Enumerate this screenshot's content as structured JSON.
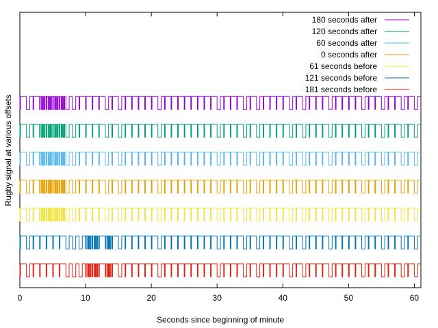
{
  "chart_data": {
    "type": "line",
    "title": "",
    "xlabel": "Seconds since beginning of minute",
    "ylabel": "Rugby signal at various offsets",
    "xlim": [
      0,
      61
    ],
    "xticks": [
      0,
      10,
      20,
      30,
      40,
      50,
      60
    ],
    "grid": false,
    "legend_position": "top-right",
    "series": [
      {
        "name": "180 seconds after",
        "color": "#9400d3",
        "dense_pulse_seconds": [
          3,
          4,
          5,
          6
        ],
        "long_gap_seconds": [
          1,
          7,
          8,
          13,
          15,
          21,
          30,
          34,
          36,
          41,
          43,
          47,
          52,
          55,
          58,
          60
        ]
      },
      {
        "name": "120 seconds after",
        "color": "#009e73",
        "dense_pulse_seconds": [
          3,
          4,
          5,
          6
        ],
        "long_gap_seconds": [
          1,
          7,
          8,
          13,
          15,
          21,
          30,
          34,
          36,
          41,
          43,
          47,
          52,
          55,
          58,
          60
        ]
      },
      {
        "name": "60 seconds after",
        "color": "#56b4e9",
        "dense_pulse_seconds": [
          3,
          4,
          5,
          6
        ],
        "long_gap_seconds": [
          1,
          7,
          8,
          13,
          15,
          21,
          30,
          34,
          36,
          41,
          43,
          47,
          52,
          55,
          58,
          60
        ]
      },
      {
        "name": "0 seconds after",
        "color": "#e69f00",
        "dense_pulse_seconds": [
          3,
          4,
          5,
          6
        ],
        "long_gap_seconds": [
          1,
          7,
          8,
          13,
          15,
          21,
          30,
          34,
          36,
          41,
          43,
          47,
          52,
          55,
          58,
          60
        ]
      },
      {
        "name": "61 seconds before",
        "color": "#f0e442",
        "dense_pulse_seconds": [
          3,
          4,
          5,
          6
        ],
        "long_gap_seconds": [
          1,
          7,
          8,
          13,
          15,
          21,
          30,
          34,
          36,
          41,
          43,
          47,
          52,
          55,
          58,
          60
        ]
      },
      {
        "name": "121 seconds before",
        "color": "#0072b2",
        "dense_pulse_seconds": [
          10,
          11,
          13
        ],
        "long_gap_seconds": [
          1,
          7,
          8,
          9,
          15,
          21,
          30,
          34,
          36,
          41,
          43,
          47,
          52,
          55,
          58,
          60
        ]
      },
      {
        "name": "181 seconds before",
        "color": "#e51e10",
        "dense_pulse_seconds": [
          10,
          11,
          13
        ],
        "long_gap_seconds": [
          1,
          7,
          8,
          9,
          15,
          21,
          30,
          34,
          36,
          41,
          43,
          47,
          52,
          55,
          58,
          60
        ]
      }
    ]
  }
}
